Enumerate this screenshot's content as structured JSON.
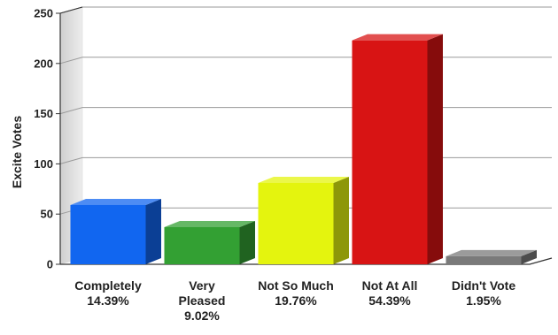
{
  "chart_data": {
    "type": "bar",
    "title": "",
    "xlabel": "",
    "ylabel": "Excite Votes",
    "ylim": [
      0,
      250
    ],
    "yticks": [
      0,
      50,
      100,
      150,
      200,
      250
    ],
    "grid": true,
    "categories": [
      [
        "Completely",
        "14.39%"
      ],
      [
        "Very",
        "Pleased",
        "9.02%"
      ],
      [
        "Not So Much",
        "19.76%"
      ],
      [
        "Not At All",
        "54.39%"
      ],
      [
        "Didn't Vote",
        "1.95%"
      ]
    ],
    "values": [
      59,
      37,
      81,
      223,
      8
    ],
    "colors": [
      "#1166f0",
      "#33a033",
      "#e4f40e",
      "#d81414",
      "#7a7a7a"
    ]
  }
}
